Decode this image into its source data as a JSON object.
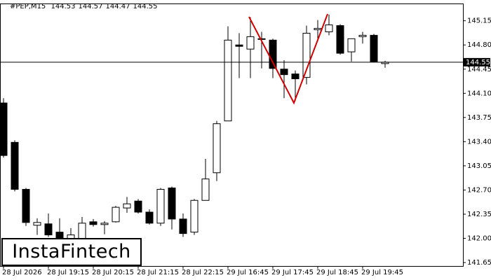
{
  "chart_data": {
    "type": "candlestick",
    "symbol": "#PEP,M15",
    "header_ohlc": [
      144.53,
      144.57,
      144.47,
      144.55
    ],
    "watermark": "InstaFintech",
    "categories": [
      "28 Jul 2026",
      null,
      null,
      null,
      "28 Jul 19:15",
      null,
      null,
      null,
      "28 Jul 20:15",
      null,
      null,
      null,
      "28 Jul 21:15",
      null,
      null,
      null,
      "28 Jul 22:15",
      null,
      null,
      null,
      "29 Jul 16:45",
      null,
      null,
      null,
      "29 Jul 17:45",
      null,
      null,
      null,
      "29 Jul 18:45",
      null,
      null,
      null,
      "29 Jul 19:45",
      null,
      null
    ],
    "open": [
      143.96,
      143.39,
      142.71,
      142.19,
      142.21,
      142.09,
      141.99,
      141.98,
      142.24,
      142.2,
      142.24,
      142.44,
      142.54,
      142.38,
      142.22,
      142.73,
      142.28,
      142.09,
      142.55,
      142.95,
      143.7,
      144.8,
      144.74,
      144.88,
      144.87,
      144.45,
      144.38,
      144.33,
      145.02,
      144.99,
      145.08,
      144.7,
      144.92,
      144.94,
      144.53
    ],
    "high": [
      144.03,
      143.42,
      142.73,
      142.29,
      142.36,
      142.29,
      142.15,
      142.31,
      142.28,
      142.25,
      142.47,
      142.6,
      142.57,
      142.42,
      142.73,
      142.75,
      142.36,
      142.57,
      143.15,
      143.7,
      145.07,
      144.97,
      145.2,
      144.99,
      144.89,
      144.58,
      144.43,
      145.08,
      145.16,
      145.24,
      145.1,
      144.89,
      144.99,
      144.96,
      144.57
    ],
    "low": [
      143.17,
      142.68,
      142.18,
      142.05,
      142.02,
      141.9,
      141.8,
      141.95,
      142.17,
      142.06,
      142.23,
      142.37,
      142.36,
      142.2,
      142.18,
      142.13,
      142.02,
      142.05,
      142.55,
      142.83,
      143.7,
      144.32,
      144.32,
      144.46,
      144.32,
      144.03,
      143.99,
      144.23,
      144.89,
      144.94,
      144.66,
      144.56,
      144.82,
      144.55,
      144.47
    ],
    "close": [
      143.2,
      142.71,
      142.23,
      142.23,
      142.05,
      141.97,
      142.05,
      142.22,
      142.2,
      142.22,
      142.45,
      142.5,
      142.38,
      142.22,
      142.71,
      142.28,
      142.07,
      142.55,
      142.86,
      143.66,
      144.87,
      144.78,
      144.92,
      144.89,
      144.46,
      144.37,
      144.31,
      144.97,
      145.04,
      145.09,
      144.68,
      144.89,
      144.94,
      144.56,
      144.55
    ],
    "up_color": "#ffffff",
    "down_color": "#000000",
    "pattern_color": "#d00000",
    "current_price": 144.55,
    "ylim": [
      141.6,
      145.4
    ],
    "yticks": [
      145.15,
      {
        "value": 144.8,
        "label": "144.80"
      },
      144.45,
      {
        "value": 144.1,
        "label": "144.10"
      },
      143.75,
      {
        "value": 143.4,
        "label": "143.40"
      },
      143.05,
      {
        "value": 142.7,
        "label": "142.70"
      },
      142.35,
      {
        "value": 142,
        "label": "142.00"
      },
      141.65
    ]
  }
}
